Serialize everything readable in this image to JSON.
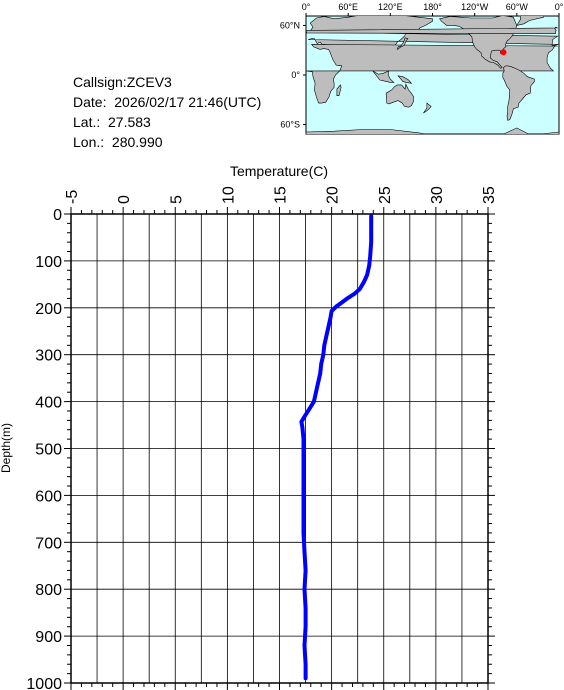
{
  "info": {
    "callsign": "Callsign:ZCEV3",
    "date": "Date:  2026/02/17 21:46(UTC)",
    "lat": "Lat.:  27.583",
    "lon": "Lon.:  280.990"
  },
  "map": {
    "top_labels": [
      "0°",
      "60°E",
      "120°E",
      "180°",
      "120°W",
      "60°W",
      "0°"
    ],
    "left_labels": [
      "60°N",
      "0°",
      "60°S"
    ],
    "ocean_color": "#ccffff",
    "land_color": "#bdbdbd",
    "marker_color": "#ff0000",
    "marker": {
      "lat": 27.583,
      "lon": 280.99
    }
  },
  "chart_data": {
    "type": "line",
    "xlabel": "Temperature(C)",
    "ylabel": "Depth(m)",
    "xlim": [
      -5,
      35
    ],
    "ylim": [
      1000,
      0
    ],
    "x_ticks": [
      "-5",
      "0",
      "5",
      "10",
      "15",
      "20",
      "25",
      "30",
      "35"
    ],
    "y_ticks": [
      "0",
      "100",
      "200",
      "300",
      "400",
      "500",
      "600",
      "700",
      "800",
      "900",
      "1000"
    ],
    "grid": true,
    "line_color": "#0000ff",
    "series": [
      {
        "points": [
          [
            23.8,
            5
          ],
          [
            23.8,
            30
          ],
          [
            23.8,
            60
          ],
          [
            23.7,
            90
          ],
          [
            23.6,
            110
          ],
          [
            23.4,
            130
          ],
          [
            23.1,
            145
          ],
          [
            22.7,
            160
          ],
          [
            22.2,
            170
          ],
          [
            21.5,
            180
          ],
          [
            20.9,
            190
          ],
          [
            20.4,
            198
          ],
          [
            20.0,
            207
          ],
          [
            19.9,
            220
          ],
          [
            19.7,
            240
          ],
          [
            19.5,
            260
          ],
          [
            19.3,
            280
          ],
          [
            19.2,
            300
          ],
          [
            19.0,
            320
          ],
          [
            18.9,
            340
          ],
          [
            18.7,
            360
          ],
          [
            18.5,
            380
          ],
          [
            18.3,
            400
          ],
          [
            17.8,
            418
          ],
          [
            17.4,
            432
          ],
          [
            17.1,
            443
          ],
          [
            17.2,
            455
          ],
          [
            17.3,
            480
          ],
          [
            17.3,
            520
          ],
          [
            17.3,
            560
          ],
          [
            17.3,
            600
          ],
          [
            17.3,
            640
          ],
          [
            17.3,
            680
          ],
          [
            17.4,
            720
          ],
          [
            17.5,
            760
          ],
          [
            17.4,
            800
          ],
          [
            17.5,
            840
          ],
          [
            17.5,
            880
          ],
          [
            17.4,
            920
          ],
          [
            17.5,
            960
          ],
          [
            17.5,
            990
          ]
        ]
      }
    ]
  }
}
